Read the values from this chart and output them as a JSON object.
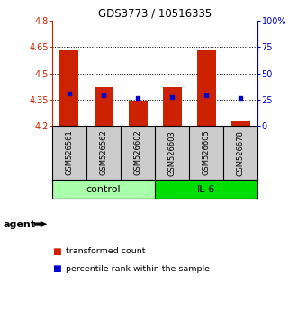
{
  "title": "GDS3773 / 10516335",
  "samples": [
    "GSM526561",
    "GSM526562",
    "GSM526602",
    "GSM526603",
    "GSM526605",
    "GSM526678"
  ],
  "red_values": [
    4.63,
    4.42,
    4.345,
    4.42,
    4.63,
    4.225
  ],
  "blue_values": [
    4.385,
    4.375,
    4.36,
    4.365,
    4.375,
    4.36
  ],
  "ymin": 4.2,
  "ymax": 4.8,
  "yticks_left": [
    4.2,
    4.35,
    4.5,
    4.65,
    4.8
  ],
  "yticks_right_vals": [
    0,
    25,
    50,
    75,
    100
  ],
  "yticks_right_labels": [
    "0",
    "25",
    "50",
    "75",
    "100%"
  ],
  "groups": [
    {
      "label": "control",
      "samples": [
        0,
        1,
        2
      ],
      "color": "#aaffaa"
    },
    {
      "label": "IL-6",
      "samples": [
        3,
        4,
        5
      ],
      "color": "#00dd00"
    }
  ],
  "bar_color": "#cc2200",
  "dot_color": "#0000cc",
  "bg_plot": "#ffffff",
  "bg_sample": "#cccccc",
  "left_axis_color": "#cc2200",
  "right_axis_color": "#0000cc",
  "bar_width": 0.55,
  "agent_label": "agent"
}
